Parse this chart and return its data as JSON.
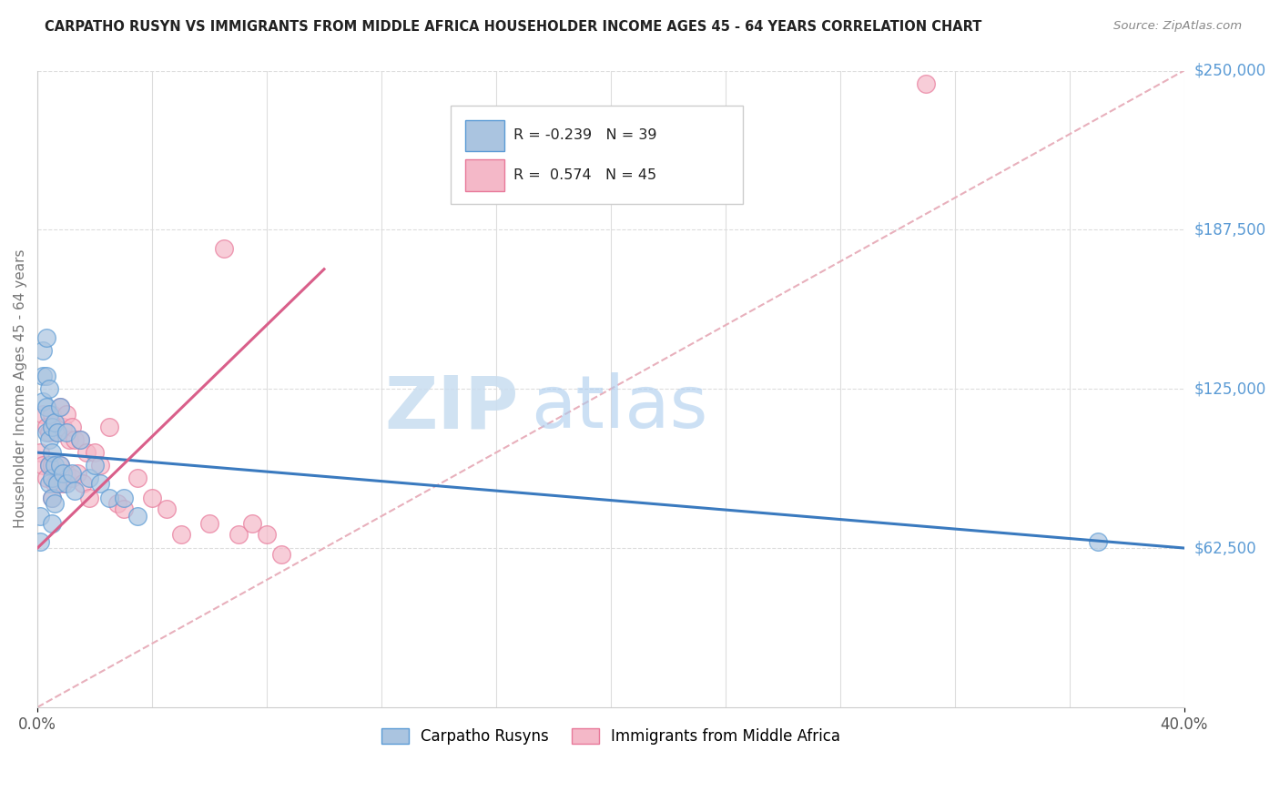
{
  "title": "CARPATHO RUSYN VS IMMIGRANTS FROM MIDDLE AFRICA HOUSEHOLDER INCOME AGES 45 - 64 YEARS CORRELATION CHART",
  "source": "Source: ZipAtlas.com",
  "ylabel": "Householder Income Ages 45 - 64 years",
  "xlim": [
    0,
    0.4
  ],
  "ylim": [
    0,
    250000
  ],
  "xtick_labels": [
    "0.0%",
    "",
    "",
    "",
    "",
    "",
    "",
    "",
    "",
    "",
    "40.0%"
  ],
  "xtick_values": [
    0.0,
    0.04,
    0.08,
    0.12,
    0.16,
    0.2,
    0.24,
    0.28,
    0.32,
    0.36,
    0.4
  ],
  "ytick_labels": [
    "$62,500",
    "$125,000",
    "$187,500",
    "$250,000"
  ],
  "ytick_values": [
    62500,
    125000,
    187500,
    250000
  ],
  "legend_label1": "Carpatho Rusyns",
  "legend_label2": "Immigrants from Middle Africa",
  "R1": -0.239,
  "N1": 39,
  "R2": 0.574,
  "N2": 45,
  "color_blue_fill": "#aac4e0",
  "color_pink_fill": "#f4b8c8",
  "color_blue_edge": "#5b9bd5",
  "color_pink_edge": "#e8799a",
  "color_blue_line": "#3a7abf",
  "color_pink_line": "#d95f8a",
  "color_diag": "#e8b0bc",
  "watermark_zip": "ZIP",
  "watermark_atlas": "atlas",
  "blue_x": [
    0.001,
    0.001,
    0.002,
    0.002,
    0.002,
    0.003,
    0.003,
    0.003,
    0.003,
    0.004,
    0.004,
    0.004,
    0.004,
    0.004,
    0.005,
    0.005,
    0.005,
    0.005,
    0.005,
    0.006,
    0.006,
    0.006,
    0.007,
    0.007,
    0.008,
    0.008,
    0.009,
    0.01,
    0.01,
    0.012,
    0.013,
    0.015,
    0.018,
    0.02,
    0.022,
    0.025,
    0.03,
    0.035,
    0.37
  ],
  "blue_y": [
    75000,
    65000,
    140000,
    130000,
    120000,
    145000,
    130000,
    118000,
    108000,
    125000,
    115000,
    105000,
    95000,
    88000,
    110000,
    100000,
    90000,
    82000,
    72000,
    112000,
    95000,
    80000,
    108000,
    88000,
    118000,
    95000,
    92000,
    108000,
    88000,
    92000,
    85000,
    105000,
    90000,
    95000,
    88000,
    82000,
    82000,
    75000,
    65000
  ],
  "pink_x": [
    0.001,
    0.002,
    0.002,
    0.003,
    0.003,
    0.004,
    0.004,
    0.005,
    0.005,
    0.005,
    0.006,
    0.006,
    0.007,
    0.007,
    0.008,
    0.008,
    0.009,
    0.009,
    0.01,
    0.01,
    0.011,
    0.012,
    0.012,
    0.013,
    0.014,
    0.015,
    0.016,
    0.017,
    0.018,
    0.02,
    0.022,
    0.025,
    0.028,
    0.03,
    0.035,
    0.04,
    0.045,
    0.05,
    0.06,
    0.065,
    0.07,
    0.075,
    0.08,
    0.085,
    0.31
  ],
  "pink_y": [
    100000,
    115000,
    95000,
    110000,
    90000,
    108000,
    95000,
    115000,
    95000,
    82000,
    112000,
    88000,
    108000,
    88000,
    118000,
    95000,
    110000,
    88000,
    115000,
    92000,
    105000,
    110000,
    90000,
    105000,
    92000,
    105000,
    88000,
    100000,
    82000,
    100000,
    95000,
    110000,
    80000,
    78000,
    90000,
    82000,
    78000,
    68000,
    72000,
    180000,
    68000,
    72000,
    68000,
    60000,
    245000
  ]
}
